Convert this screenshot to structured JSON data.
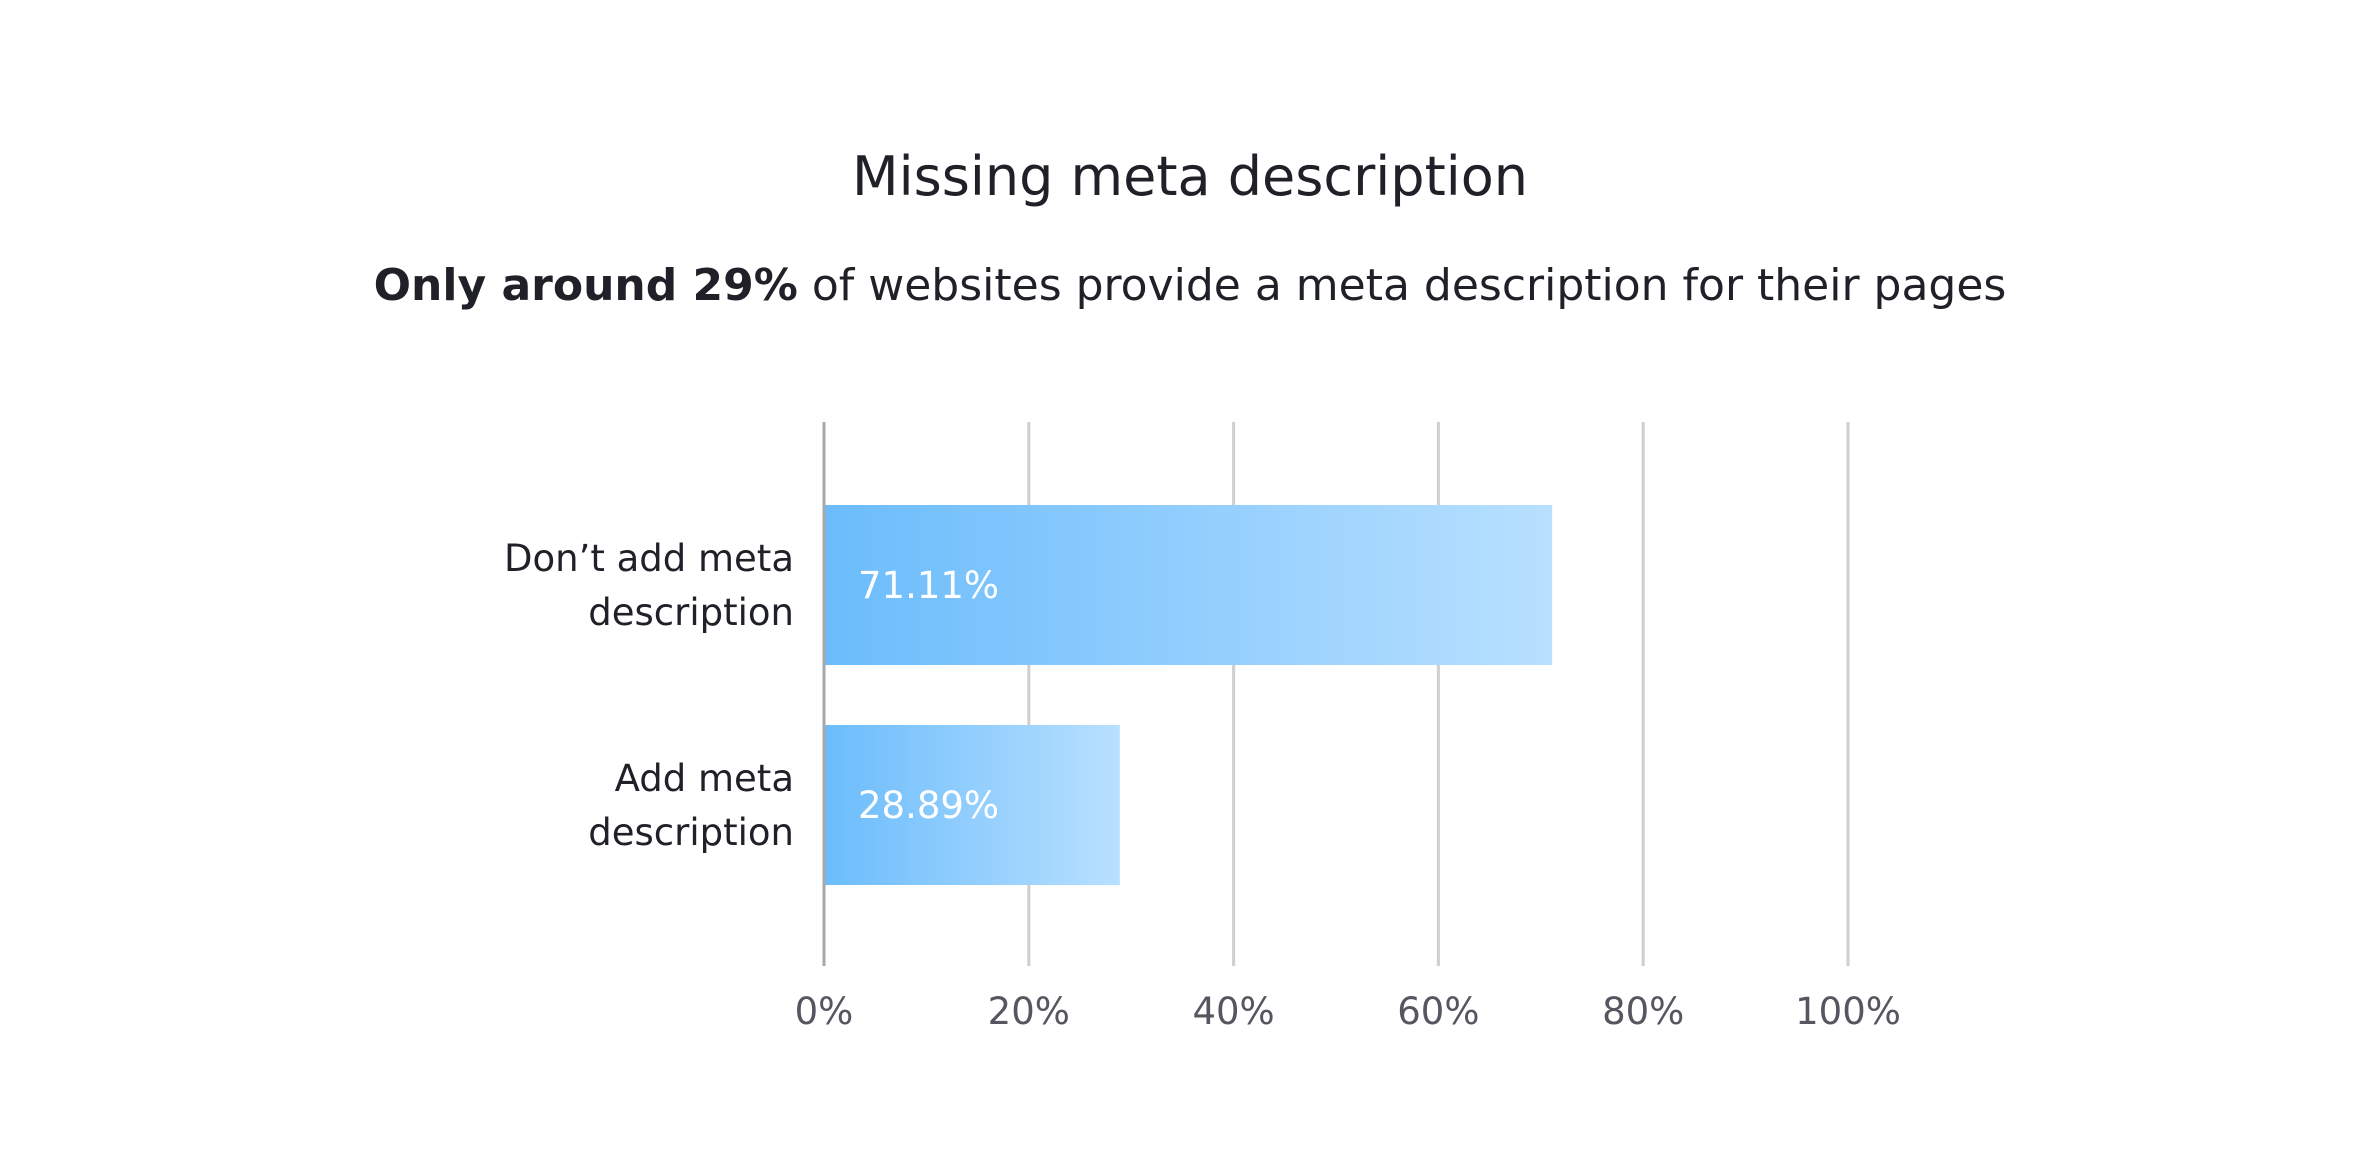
{
  "chart_data": {
    "type": "bar",
    "orientation": "horizontal",
    "title": "Missing meta description",
    "subtitle_bold": "Only around 29%",
    "subtitle_rest": " of websites provide a meta description for their pages",
    "categories": [
      [
        "Don’t add meta",
        "description"
      ],
      [
        "Add meta",
        "description"
      ]
    ],
    "values": [
      71.11,
      28.89
    ],
    "data_labels": [
      "71.11%",
      "28.89%"
    ],
    "xlim": [
      0,
      100
    ],
    "ticks": [
      0,
      20,
      40,
      60,
      80,
      100
    ],
    "tick_labels": [
      "0%",
      "20%",
      "40%",
      "60%",
      "80%",
      "100%"
    ],
    "grid": true,
    "legend": "none",
    "colors": {
      "bar_start": "#6bbcfc",
      "bar_end": "#b8e0ff",
      "grid": "#cfcfcf",
      "axis": "#a8a8a8"
    }
  }
}
